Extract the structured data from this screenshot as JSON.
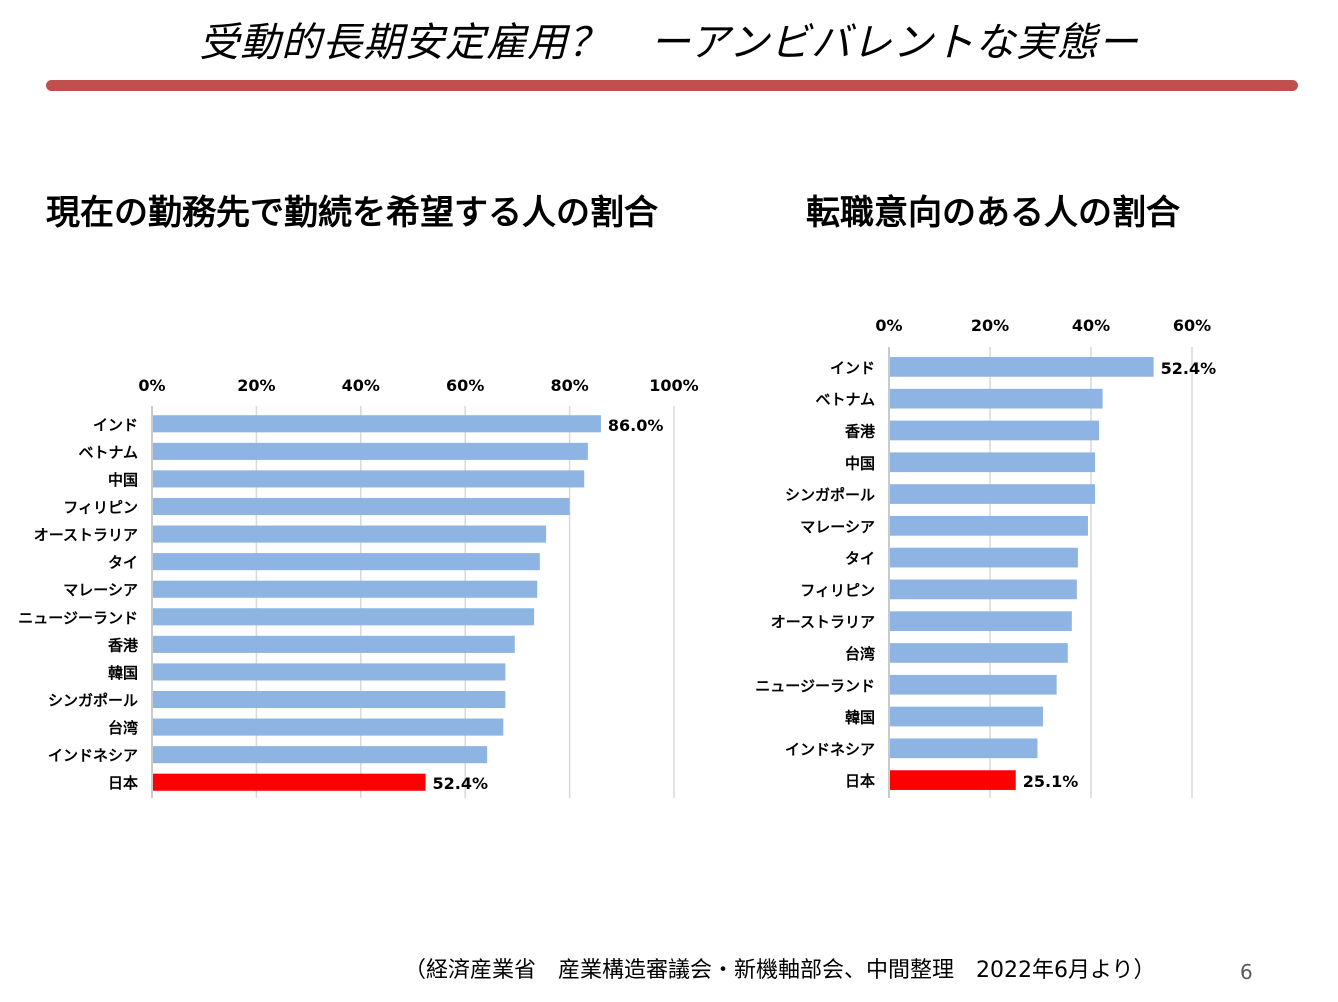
{
  "slide": {
    "title": "受動的長期安定雇用？　ーアンビバレントな実態ー",
    "accent_rule_color": "#C0504D",
    "source": "（経済産業省　産業構造審議会・新機軸部会、中間整理　2022年6月より）",
    "page_number": "6"
  },
  "chart_data": [
    {
      "type": "bar",
      "orientation": "horizontal",
      "title": "現在の勤務先で勤続を希望する人の割合",
      "xlim": [
        0,
        100
      ],
      "ticks": [
        "0%",
        "20%",
        "40%",
        "60%",
        "80%",
        "100%"
      ],
      "categories": [
        "インド",
        "ベトナム",
        "中国",
        "フィリピン",
        "オーストラリア",
        "タイ",
        "マレーシア",
        "ニュージーランド",
        "香港",
        "韓国",
        "シンガポール",
        "台湾",
        "インドネシア",
        "日本"
      ],
      "values": [
        86.0,
        83.5,
        82.8,
        80.0,
        75.5,
        74.3,
        73.8,
        73.2,
        69.5,
        67.7,
        67.7,
        67.3,
        64.2,
        52.4
      ],
      "data_labels": {
        "0": "86.0%",
        "13": "52.4%"
      },
      "bar_color": "#8DB4E2",
      "highlight_index": 13,
      "highlight_color": "#FF0000",
      "grid": true,
      "axis_position": "top"
    },
    {
      "type": "bar",
      "orientation": "horizontal",
      "title": "転職意向のある人の割合",
      "xlim": [
        0,
        60
      ],
      "ticks": [
        "0%",
        "20%",
        "40%",
        "60%"
      ],
      "categories": [
        "インド",
        "ベトナム",
        "香港",
        "中国",
        "シンガポール",
        "マレーシア",
        "タイ",
        "フィリピン",
        "オーストラリア",
        "台湾",
        "ニュージーランド",
        "韓国",
        "インドネシア",
        "日本"
      ],
      "values": [
        52.4,
        42.3,
        41.6,
        40.8,
        40.8,
        39.4,
        37.4,
        37.2,
        36.2,
        35.4,
        33.2,
        30.5,
        29.4,
        25.1
      ],
      "data_labels": {
        "0": "52.4%",
        "13": "25.1%"
      },
      "bar_color": "#8DB4E2",
      "highlight_index": 13,
      "highlight_color": "#FF0000",
      "grid": true,
      "axis_position": "top"
    }
  ]
}
